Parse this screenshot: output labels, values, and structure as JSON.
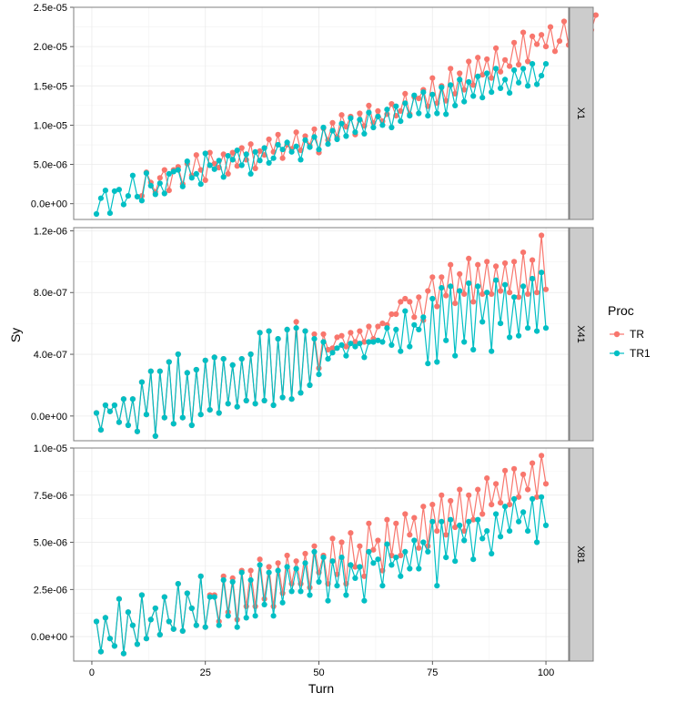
{
  "chart_data": {
    "type": "line",
    "xlabel": "Turn",
    "ylabel": "Sy",
    "x_ticks": [
      0,
      25,
      50,
      75,
      100
    ],
    "xlim": [
      -4,
      105
    ],
    "legend": {
      "title": "Proc",
      "placement": "right",
      "entries": [
        {
          "name": "TR",
          "color": "#F8766D"
        },
        {
          "name": "TR1",
          "color": "#00BFC4"
        }
      ]
    },
    "panels": [
      {
        "strip": "X1",
        "ylim": [
          -2e-06,
          2.5e-05
        ],
        "y_ticks": [
          0,
          5e-06,
          1e-05,
          1.5e-05,
          2e-05,
          2.5e-05
        ],
        "y_tick_labels": [
          "0.0e+00",
          "5.0e-06",
          "1.0e-05",
          "1.5e-05",
          "2.0e-05",
          "2.5e-05"
        ],
        "series": [
          {
            "name": "TR",
            "turn_start": 11,
            "values": [
              1e-06,
              4e-06,
              2.7e-06,
              1.5e-06,
              3.3e-06,
              4.3e-06,
              1.7e-06,
              4.3e-06,
              4.7e-06,
              2.5e-06,
              5.1e-06,
              3.6e-06,
              6.2e-06,
              4.3e-06,
              3e-06,
              6.5e-06,
              5.1e-06,
              4.6e-06,
              6.3e-06,
              3.8e-06,
              6.5e-06,
              4.8e-06,
              7.1e-06,
              5.6e-06,
              7.6e-06,
              4.5e-06,
              6.7e-06,
              6.2e-06,
              8.2e-06,
              6.6e-06,
              8.8e-06,
              5.8e-06,
              7.5e-06,
              7e-06,
              9.1e-06,
              6.8e-06,
              8.6e-06,
              7.4e-06,
              9.5e-06,
              6.5e-06,
              9.6e-06,
              8.1e-06,
              1.03e-05,
              8.5e-06,
              1.13e-05,
              9.8e-06,
              1.11e-05,
              8.8e-06,
              1.15e-05,
              9.9e-06,
              1.25e-05,
              1.03e-05,
              1.18e-05,
              1.05e-05,
              1.14e-05,
              1.27e-05,
              1.12e-05,
              1.18e-05,
              1.4e-05,
              1.14e-05,
              1.36e-05,
              1.34e-05,
              1.45e-05,
              1.24e-05,
              1.6e-05,
              1.28e-05,
              1.5e-05,
              1.31e-05,
              1.72e-05,
              1.4e-05,
              1.66e-05,
              1.45e-05,
              1.81e-05,
              1.51e-05,
              1.86e-05,
              1.64e-05,
              1.84e-05,
              1.6e-05,
              1.98e-05,
              1.68e-05,
              1.83e-05,
              1.75e-05,
              2.05e-05,
              1.77e-05,
              2.18e-05,
              1.81e-05,
              2.13e-05,
              2.03e-05,
              2.15e-05,
              2e-05,
              2.25e-05,
              1.94e-05,
              2.07e-05,
              2.32e-05,
              2.02e-05,
              2.13e-05,
              2.23e-05,
              2.03e-05,
              2.39e-05,
              2.21e-05,
              2.4e-05
            ]
          },
          {
            "name": "TR1",
            "turn_start": 1,
            "values": [
              -1.3e-06,
              7e-07,
              1.7e-06,
              -1.2e-06,
              1.6e-06,
              1.8e-06,
              -1e-07,
              1e-06,
              3.6e-06,
              9e-07,
              4e-07,
              3.9e-06,
              2.3e-06,
              1.2e-06,
              2.6e-06,
              1.3e-06,
              3.8e-06,
              4.1e-06,
              4.3e-06,
              2.2e-06,
              5.4e-06,
              3.3e-06,
              3.8e-06,
              2.5e-06,
              6.4e-06,
              4.9e-06,
              4.4e-06,
              5.5e-06,
              3.4e-06,
              6.1e-06,
              5.6e-06,
              6.8e-06,
              4.9e-06,
              6.3e-06,
              3.8e-06,
              6.6e-06,
              5.5e-06,
              7.1e-06,
              5.2e-06,
              5.8e-06,
              7.5e-06,
              6.9e-06,
              7.8e-06,
              6.6e-06,
              7.3e-06,
              5.6e-06,
              8.1e-06,
              7.2e-06,
              8.5e-06,
              6.9e-06,
              9.7e-06,
              7.6e-06,
              9.3e-06,
              8.2e-06,
              1.02e-05,
              8.6e-06,
              1.09e-05,
              9.1e-06,
              1.07e-05,
              8.9e-06,
              1.16e-05,
              9.7e-06,
              1.11e-05,
              1e-05,
              1.2e-05,
              9.7e-06,
              1.24e-05,
              1.05e-05,
              1.28e-05,
              1.12e-05,
              1.38e-05,
              1.15e-05,
              1.42e-05,
              1.12e-05,
              1.39e-05,
              1.15e-05,
              1.48e-05,
              1.14e-05,
              1.51e-05,
              1.25e-05,
              1.58e-05,
              1.3e-05,
              1.55e-05,
              1.37e-05,
              1.62e-05,
              1.35e-05,
              1.66e-05,
              1.42e-05,
              1.72e-05,
              1.47e-05,
              1.58e-05,
              1.41e-05,
              1.7e-05,
              1.54e-05,
              1.72e-05,
              1.5e-05,
              1.78e-05,
              1.52e-05,
              1.63e-05,
              1.78e-05
            ]
          }
        ]
      },
      {
        "strip": "X41",
        "ylim": [
          -1.6e-07,
          1.22e-06
        ],
        "y_ticks": [
          0,
          4e-07,
          8e-07,
          1.2e-06
        ],
        "y_tick_labels": [
          "0.0e+00",
          "4.0e-07",
          "8.0e-07",
          "1.2e-06"
        ],
        "series": [
          {
            "name": "TR",
            "turn_start": 1,
            "values": [
              2e-08,
              -9e-08,
              7e-08,
              3e-08,
              7e-08,
              -4e-08,
              1.1e-07,
              -6e-08,
              1.1e-07,
              -1e-07,
              2.2e-07,
              1e-08,
              2.9e-07,
              -1.3e-07,
              2.9e-07,
              -1e-08,
              3.5e-07,
              -5e-08,
              4e-07,
              -1e-08,
              2.8e-07,
              -6e-08,
              3e-07,
              1e-08,
              3.6e-07,
              4e-08,
              3.8e-07,
              2e-08,
              3.7e-07,
              8e-08,
              3.3e-07,
              6e-08,
              3.7e-07,
              1e-07,
              4e-07,
              8e-08,
              5.4e-07,
              1e-07,
              5.5e-07,
              7e-08,
              5e-07,
              1.2e-07,
              5.6e-07,
              1.1e-07,
              6.1e-07,
              1.5e-07,
              5.5e-07,
              2e-07,
              5.3e-07,
              3.1e-07,
              5.3e-07,
              4.3e-07,
              4.4e-07,
              5.1e-07,
              5.2e-07,
              4.5e-07,
              5.4e-07,
              4.8e-07,
              5.5e-07,
              4.8e-07,
              5.8e-07,
              5e-07,
              5.8e-07,
              6e-07,
              5.9e-07,
              6.6e-07,
              6.6e-07,
              7.4e-07,
              7.6e-07,
              7.4e-07,
              6.4e-07,
              7.7e-07,
              6.2e-07,
              8.1e-07,
              9e-07,
              7.1e-07,
              9e-07,
              7.8e-07,
              9.8e-07,
              7.3e-07,
              9.2e-07,
              7.9e-07,
              1.02e-06,
              7.4e-07,
              9.8e-07,
              7.9e-07,
              1e-06,
              7.9e-07,
              9.7e-07,
              8.1e-07,
              9.9e-07,
              8e-07,
              1e-06,
              7.7e-07,
              1.06e-06,
              7.9e-07,
              1.01e-06,
              8e-07,
              1.17e-06,
              8.2e-07
            ]
          },
          {
            "name": "TR1",
            "turn_start": 1,
            "values": [
              2e-08,
              -9e-08,
              7e-08,
              3e-08,
              7e-08,
              -4e-08,
              1.1e-07,
              -6e-08,
              1.1e-07,
              -1e-07,
              2.2e-07,
              1e-08,
              2.9e-07,
              -1.3e-07,
              2.9e-07,
              -1e-08,
              3.5e-07,
              -5e-08,
              4e-07,
              -1e-08,
              2.8e-07,
              -6e-08,
              3e-07,
              1e-08,
              3.6e-07,
              4e-08,
              3.8e-07,
              2e-08,
              3.7e-07,
              8e-08,
              3.3e-07,
              6e-08,
              3.7e-07,
              1e-07,
              4e-07,
              8e-08,
              5.4e-07,
              1e-07,
              5.5e-07,
              7e-08,
              5e-07,
              1.2e-07,
              5.6e-07,
              1.1e-07,
              5.7e-07,
              1.5e-07,
              5.5e-07,
              2e-07,
              5e-07,
              2.7e-07,
              4.8e-07,
              3.7e-07,
              4.1e-07,
              4.4e-07,
              4.6e-07,
              3.9e-07,
              4.7e-07,
              4.5e-07,
              4.7e-07,
              3.8e-07,
              4.8e-07,
              4.8e-07,
              4.9e-07,
              4.8e-07,
              5.7e-07,
              4.6e-07,
              5.6e-07,
              4.2e-07,
              6.8e-07,
              4.5e-07,
              5.9e-07,
              5.6e-07,
              6.4e-07,
              3.4e-07,
              7.6e-07,
              3.5e-07,
              8.3e-07,
              4.9e-07,
              8.4e-07,
              3.9e-07,
              8.1e-07,
              4.8e-07,
              8.6e-07,
              4.3e-07,
              8.4e-07,
              6.1e-07,
              8e-07,
              4.2e-07,
              8.8e-07,
              6e-07,
              8.5e-07,
              5.1e-07,
              7.7e-07,
              5.2e-07,
              8.4e-07,
              5.7e-07,
              8.9e-07,
              5.5e-07,
              9.3e-07,
              5.7e-07
            ]
          }
        ]
      },
      {
        "strip": "X81",
        "ylim": [
          -1.3e-06,
          1e-05
        ],
        "y_ticks": [
          0,
          2.5e-06,
          5e-06,
          7.5e-06,
          1e-05
        ],
        "y_tick_labels": [
          "0.0e+00",
          "2.5e-06",
          "5.0e-06",
          "7.5e-06",
          "1.0e-05"
        ],
        "series": [
          {
            "name": "TR",
            "turn_start": 1,
            "values": [
              8e-07,
              -8e-07,
              1e-06,
              -1e-07,
              -5e-07,
              2e-06,
              -9e-07,
              1.3e-06,
              6e-07,
              -4e-07,
              2.2e-06,
              -1e-07,
              9e-07,
              1.5e-06,
              1e-07,
              2.1e-06,
              8e-07,
              4e-07,
              2.8e-06,
              3e-07,
              2.3e-06,
              1.5e-06,
              6e-07,
              3.2e-06,
              5e-07,
              2.2e-06,
              2.2e-06,
              8e-07,
              3.2e-06,
              1.3e-06,
              3.1e-06,
              9e-07,
              3.5e-06,
              1.6e-06,
              3.5e-06,
              1.6e-06,
              4.1e-06,
              2e-06,
              3.7e-06,
              1.6e-06,
              3.9e-06,
              2.3e-06,
              4.3e-06,
              2.8e-06,
              4e-06,
              2.8e-06,
              4.4e-06,
              2.6e-06,
              4.8e-06,
              3.4e-06,
              4.3e-06,
              2.8e-06,
              5.2e-06,
              3.3e-06,
              5e-06,
              2.8e-06,
              5.5e-06,
              3.7e-06,
              4.8e-06,
              3.2e-06,
              6e-06,
              4.6e-06,
              5.1e-06,
              3.5e-06,
              6.2e-06,
              4.3e-06,
              6e-06,
              4.3e-06,
              6.5e-06,
              5.4e-06,
              6.3e-06,
              4.7e-06,
              6.9e-06,
              4.8e-06,
              7e-06,
              5.6e-06,
              7.5e-06,
              5.4e-06,
              7.2e-06,
              5.8e-06,
              7.8e-06,
              5.6e-06,
              7.5e-06,
              6.2e-06,
              7.8e-06,
              6.5e-06,
              8.4e-06,
              7e-06,
              8.1e-06,
              7.1e-06,
              8.8e-06,
              7e-06,
              8.9e-06,
              7.4e-06,
              8.6e-06,
              7.8e-06,
              9.2e-06,
              7.4e-06,
              9.6e-06,
              8.1e-06
            ]
          },
          {
            "name": "TR1",
            "turn_start": 1,
            "values": [
              8e-07,
              -8e-07,
              1e-06,
              -1e-07,
              -5e-07,
              2e-06,
              -9e-07,
              1.3e-06,
              6e-07,
              -4e-07,
              2.2e-06,
              -1e-07,
              9e-07,
              1.5e-06,
              1e-07,
              2.1e-06,
              8e-07,
              4e-07,
              2.8e-06,
              3e-07,
              2.3e-06,
              1.5e-06,
              6e-07,
              3.2e-06,
              5e-07,
              2.1e-06,
              2.1e-06,
              6e-07,
              3e-06,
              1.1e-06,
              2.9e-06,
              5e-07,
              3.4e-06,
              1e-06,
              3e-06,
              1.1e-06,
              3.8e-06,
              1.7e-06,
              3.4e-06,
              1.1e-06,
              3.5e-06,
              1.8e-06,
              3.7e-06,
              2.4e-06,
              3.6e-06,
              2.4e-06,
              3.9e-06,
              2.2e-06,
              4.5e-06,
              2.9e-06,
              4.2e-06,
              1.9e-06,
              4e-06,
              2.7e-06,
              4.2e-06,
              2.2e-06,
              3.8e-06,
              3.1e-06,
              3.7e-06,
              1.9e-06,
              4.5e-06,
              3.9e-06,
              4.1e-06,
              2.7e-06,
              4.9e-06,
              3.8e-06,
              4.2e-06,
              3.2e-06,
              4.5e-06,
              3.6e-06,
              5.1e-06,
              3.6e-06,
              5e-06,
              4.5e-06,
              6.1e-06,
              2.7e-06,
              6.1e-06,
              4.2e-06,
              6.2e-06,
              4e-06,
              5.9e-06,
              5.1e-06,
              6.1e-06,
              4.1e-06,
              6.2e-06,
              5.2e-06,
              5.6e-06,
              4.4e-06,
              6.5e-06,
              5.3e-06,
              6.9e-06,
              5.6e-06,
              7.3e-06,
              6.1e-06,
              6.6e-06,
              5.6e-06,
              7.3e-06,
              5e-06,
              7.4e-06,
              5.9e-06
            ]
          }
        ]
      }
    ]
  }
}
